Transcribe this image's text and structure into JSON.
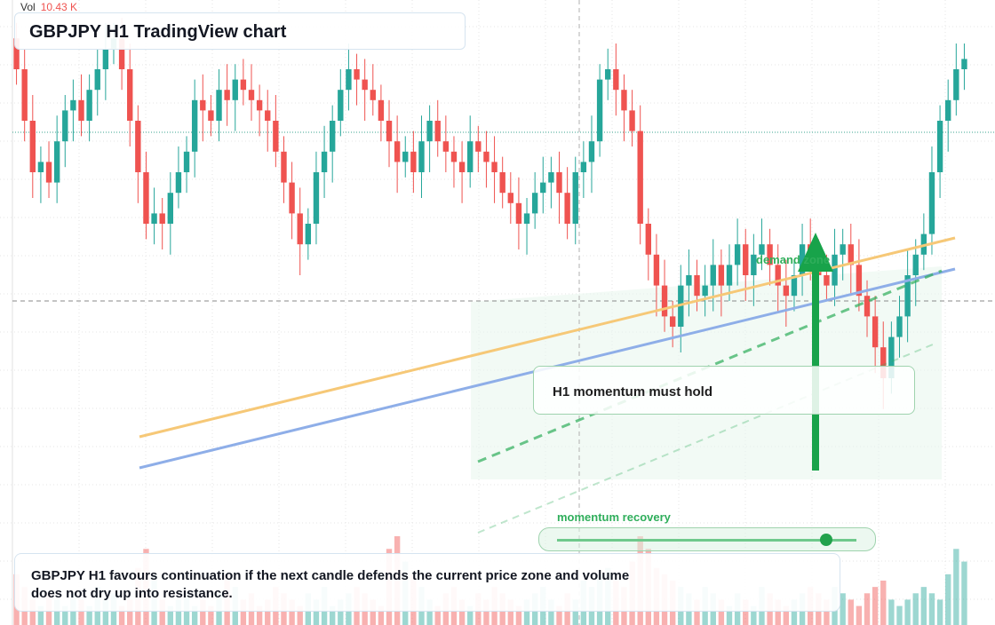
{
  "chart_title": "GBPJPY H1 TradingView chart",
  "volume_label": {
    "label": "Vol",
    "value": "10.43 K"
  },
  "annotations": {
    "momentum_box": "H1 momentum must hold",
    "demand_zone": "demand zone",
    "recovery_slider": "momentum recovery",
    "recovery_level": 0.9
  },
  "caption": "GBPJPY H1 favours continuation if the next candle defends the current price zone and volume does not dry up into resistance.",
  "colors": {
    "up": "#26a69a",
    "down": "#ef5350",
    "orange_trendline": "#f6c877",
    "blue_trendline": "#8eaee8",
    "green_projection": "#2fae5b",
    "arrow": "#18a34a"
  },
  "chart_data": {
    "type": "candlestick",
    "symbol": "GBPJPY",
    "timeframe": "H1",
    "ylim": [
      0,
      100
    ],
    "grid": true,
    "reference_level": 74,
    "close_level": 92,
    "closes": [
      90,
      80,
      70,
      72,
      68,
      76,
      82,
      84,
      80,
      86,
      90,
      94,
      96,
      90,
      80,
      70,
      60,
      62,
      60,
      66,
      70,
      74,
      84,
      82,
      80,
      86,
      84,
      88,
      86,
      84,
      82,
      80,
      74,
      68,
      62,
      56,
      60,
      70,
      74,
      80,
      86,
      90,
      88,
      86,
      84,
      80,
      76,
      72,
      74,
      70,
      76,
      80,
      76,
      74,
      72,
      70,
      76,
      74,
      72,
      70,
      66,
      64,
      60,
      62,
      66,
      68,
      70,
      66,
      60,
      70,
      72,
      76,
      88,
      90,
      86,
      82,
      78,
      60,
      54,
      48,
      42,
      40,
      48,
      50,
      46,
      48,
      52,
      48,
      52,
      56,
      50,
      54,
      56,
      52,
      48,
      46,
      50,
      56,
      54,
      50,
      48,
      54,
      56,
      52,
      46,
      42,
      36,
      30,
      38,
      42,
      50,
      54,
      58,
      70,
      80,
      84,
      90,
      92
    ],
    "opens": [
      96,
      90,
      80,
      70,
      72,
      68,
      76,
      82,
      84,
      80,
      86,
      90,
      94,
      96,
      90,
      80,
      70,
      60,
      62,
      60,
      66,
      70,
      74,
      84,
      82,
      80,
      86,
      84,
      88,
      86,
      84,
      82,
      80,
      74,
      68,
      62,
      56,
      60,
      70,
      74,
      80,
      86,
      90,
      88,
      86,
      84,
      80,
      76,
      72,
      74,
      70,
      76,
      80,
      76,
      74,
      72,
      70,
      76,
      74,
      72,
      70,
      66,
      64,
      60,
      62,
      66,
      68,
      70,
      66,
      60,
      70,
      72,
      76,
      88,
      90,
      86,
      82,
      78,
      60,
      54,
      48,
      42,
      40,
      48,
      50,
      46,
      48,
      52,
      48,
      52,
      56,
      50,
      54,
      56,
      52,
      48,
      46,
      50,
      56,
      54,
      50,
      48,
      54,
      56,
      52,
      46,
      42,
      36,
      30,
      38,
      42,
      50,
      54,
      58,
      70,
      80,
      84,
      90
    ],
    "volumes": [
      8,
      6,
      4,
      3,
      5,
      4,
      3,
      5,
      4,
      3,
      6,
      4,
      5,
      3,
      4,
      9,
      12,
      8,
      4,
      3,
      4,
      5,
      3,
      4,
      3,
      5,
      8,
      6,
      4,
      5,
      3,
      4,
      6,
      5,
      4,
      3,
      5,
      4,
      6,
      3,
      4,
      5,
      6,
      5,
      4,
      3,
      12,
      14,
      10,
      8,
      6,
      4,
      3,
      5,
      6,
      4,
      3,
      5,
      4,
      6,
      5,
      4,
      3,
      4,
      5,
      6,
      4,
      3,
      5,
      4,
      7,
      6,
      8,
      9,
      7,
      6,
      10,
      14,
      12,
      9,
      8,
      7,
      6,
      5,
      4,
      6,
      5,
      4,
      3,
      5,
      4,
      3,
      6,
      5,
      4,
      3,
      4,
      5,
      6,
      5,
      4,
      6,
      5,
      4,
      3,
      5,
      6,
      7,
      4,
      3,
      4,
      5,
      6,
      5,
      4,
      8,
      12,
      10
    ]
  }
}
